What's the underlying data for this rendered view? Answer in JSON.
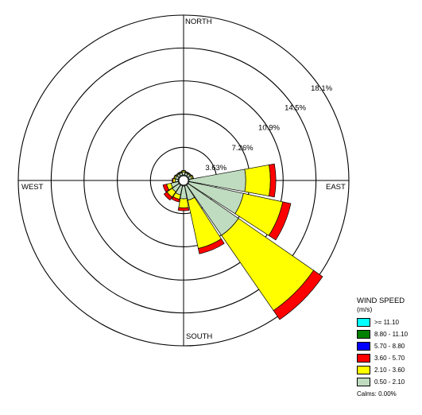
{
  "chart_data": {
    "type": "windrose",
    "directions": [
      "N",
      "NNE",
      "NE",
      "ENE",
      "E",
      "ESE",
      "SE",
      "SSE",
      "S",
      "SSW",
      "SW",
      "WSW",
      "W",
      "WNW",
      "NW",
      "NNW"
    ],
    "direction_labels": {
      "north": "NORTH",
      "east": "EAST",
      "south": "SOUTH",
      "west": "WEST"
    },
    "ring_labels": [
      "3.63%",
      "7.26%",
      "10.9%",
      "14.5%",
      "18.1%"
    ],
    "ring_values": [
      3.63,
      7.26,
      10.9,
      14.5,
      18.1
    ],
    "radial_max": 18.1,
    "legend": {
      "title": "WIND SPEED",
      "units": "(m/s)",
      "calms": "Calms: 0.00%"
    },
    "bins": [
      {
        "label": ">= 11.10",
        "color": "#00ffff"
      },
      {
        "label": "8.80 - 11.10",
        "color": "#008000"
      },
      {
        "label": "5.70 - 8.80",
        "color": "#0000ff"
      },
      {
        "label": "3.60 - 5.70",
        "color": "#ff0000"
      },
      {
        "label": "2.10 - 3.60",
        "color": "#ffff00"
      },
      {
        "label": "0.50 - 2.10",
        "color": "#c0dcc0"
      }
    ],
    "sectors": [
      {
        "direction": "N",
        "values": [
          0,
          0,
          0,
          0.05,
          0.15,
          0.3
        ]
      },
      {
        "direction": "NNE",
        "values": [
          0,
          0,
          0,
          0.05,
          0.1,
          0.25
        ]
      },
      {
        "direction": "NE",
        "values": [
          0,
          0,
          0,
          0.05,
          0.1,
          0.25
        ]
      },
      {
        "direction": "ENE",
        "values": [
          0,
          0,
          0,
          0.05,
          0.15,
          0.3
        ]
      },
      {
        "direction": "E",
        "values": [
          0,
          0,
          0,
          0.6,
          2.7,
          6.2
        ]
      },
      {
        "direction": "ESE",
        "values": [
          0,
          0,
          0,
          0.9,
          4.4,
          6.1
        ]
      },
      {
        "direction": "SE",
        "values": [
          0,
          0,
          0,
          1.2,
          10.0,
          6.7
        ]
      },
      {
        "direction": "SSE",
        "values": [
          0,
          0,
          0,
          0.6,
          5.4,
          1.6
        ]
      },
      {
        "direction": "S",
        "values": [
          0,
          0,
          0,
          0.3,
          1.0,
          1.4
        ]
      },
      {
        "direction": "SSW",
        "values": [
          0,
          0,
          0,
          0.3,
          0.5,
          1.0
        ]
      },
      {
        "direction": "SW",
        "values": [
          0,
          0,
          0,
          0.4,
          0.7,
          0.9
        ]
      },
      {
        "direction": "WSW",
        "values": [
          0,
          0,
          0,
          0.4,
          0.5,
          0.8
        ]
      },
      {
        "direction": "W",
        "values": [
          0,
          0,
          0,
          0.1,
          0.25,
          0.3
        ]
      },
      {
        "direction": "WNW",
        "values": [
          0,
          0,
          0,
          0.05,
          0.15,
          0.3
        ]
      },
      {
        "direction": "NW",
        "values": [
          0,
          0,
          0,
          0.05,
          0.1,
          0.25
        ]
      },
      {
        "direction": "NNW",
        "values": [
          0,
          0,
          0,
          0.05,
          0.1,
          0.25
        ]
      }
    ]
  }
}
